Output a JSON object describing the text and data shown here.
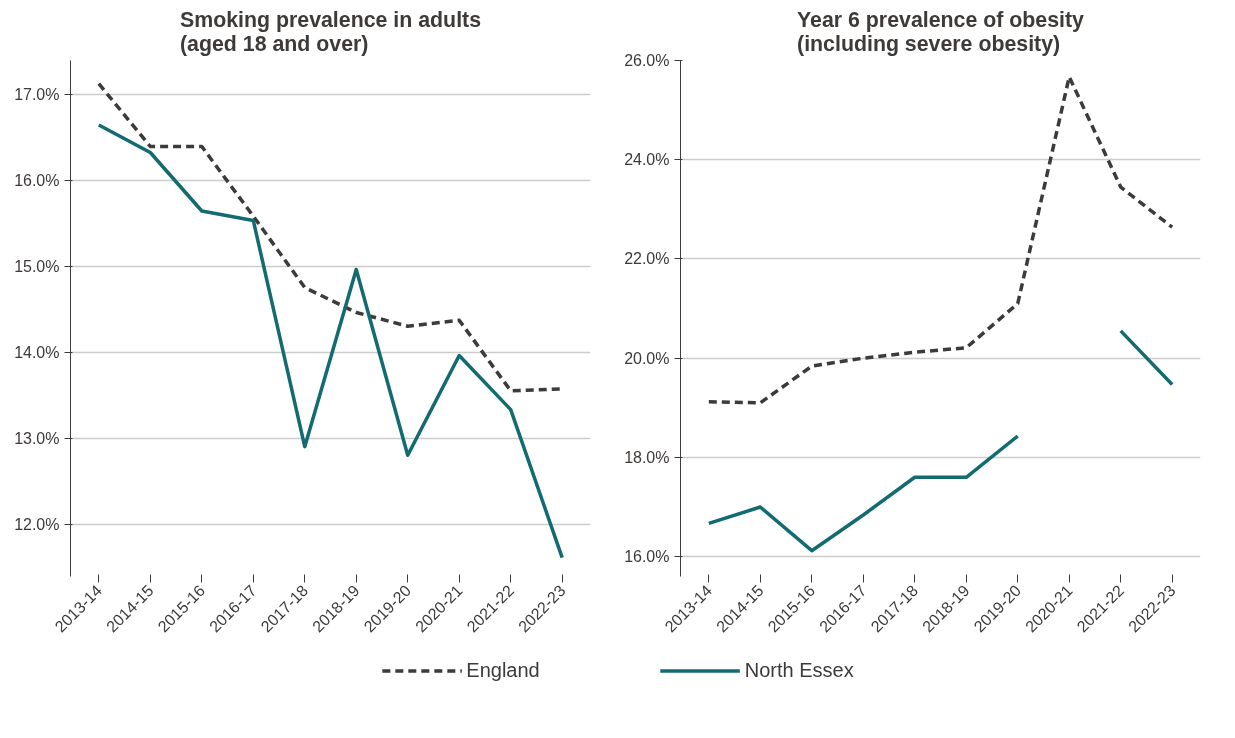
{
  "chart_data": [
    {
      "type": "line",
      "title": "Smoking prevalence in adults\n(aged 18 and over)",
      "categories": [
        "2013-14",
        "2014-15",
        "2015-16",
        "2016-17",
        "2017-18",
        "2018-19",
        "2019-20",
        "2020-21",
        "2021-22",
        "2022-23"
      ],
      "series": [
        {
          "name": "England",
          "color": "#3d3a38",
          "line_style": "dashed",
          "values": [
            17.13,
            16.4,
            16.4,
            15.59,
            14.76,
            14.47,
            14.31,
            14.38,
            13.56,
            13.58
          ]
        },
        {
          "name": "North Essex",
          "color": "#136b72",
          "line_style": "solid",
          "values": [
            16.65,
            16.33,
            15.65,
            15.54,
            12.91,
            14.97,
            12.81,
            13.97,
            13.34,
            11.62
          ]
        }
      ],
      "ylim": [
        11.4,
        17.4
      ],
      "yticks": [
        {
          "value": 12,
          "label": "12.0%"
        },
        {
          "value": 13,
          "label": "13.0%"
        },
        {
          "value": 14,
          "label": "14.0%"
        },
        {
          "value": 15,
          "label": "15.0%"
        },
        {
          "value": 16,
          "label": "16.0%"
        },
        {
          "value": 17,
          "label": "17.0%"
        }
      ],
      "grid": "y",
      "legend": "bottom",
      "marker": "none"
    },
    {
      "type": "line",
      "title": "Year 6 prevalence of obesity\n(including severe obesity)",
      "categories": [
        "2013-14",
        "2014-15",
        "2015-16",
        "2016-17",
        "2017-18",
        "2018-19",
        "2019-20",
        "2020-21",
        "2021-22",
        "2022-23"
      ],
      "series": [
        {
          "name": "England",
          "color": "#3d3a38",
          "line_style": "dashed",
          "values": [
            19.12,
            19.1,
            19.84,
            20.0,
            20.12,
            20.21,
            21.1,
            25.67,
            23.45,
            22.64
          ]
        },
        {
          "name": "North Essex",
          "color": "#136b72",
          "line_style": "solid",
          "values": [
            16.67,
            17.0,
            16.12,
            16.84,
            17.6,
            17.6,
            18.43,
            null,
            20.55,
            19.47
          ]
        }
      ],
      "ylim": [
        15.6,
        26.0
      ],
      "yticks": [
        {
          "value": 16,
          "label": "16.0%"
        },
        {
          "value": 18,
          "label": "18.0%"
        },
        {
          "value": 20,
          "label": "20.0%"
        },
        {
          "value": 22,
          "label": "22.0%"
        },
        {
          "value": 24,
          "label": "24.0%"
        },
        {
          "value": 26,
          "label": "26.0%"
        }
      ],
      "grid": "y",
      "legend": "bottom",
      "marker": "none"
    }
  ]
}
